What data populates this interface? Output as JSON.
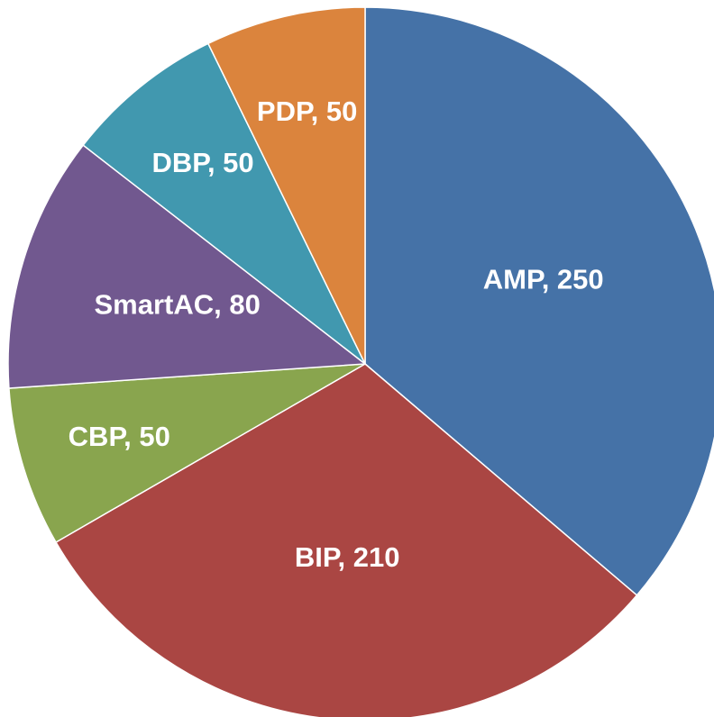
{
  "chart_data": {
    "type": "pie",
    "categories": [
      "AMP",
      "BIP",
      "CBP",
      "SmartAC",
      "DBP",
      "PDP"
    ],
    "values": [
      250,
      210,
      50,
      80,
      50,
      50
    ],
    "value_labels": [
      ", 250",
      ", 210",
      ", 50",
      ", 80",
      ", 50",
      ", 50"
    ],
    "colors": [
      "#4572a7",
      "#aa4643",
      "#89a54e",
      "#71588f",
      "#4198af",
      "#db843d"
    ]
  }
}
